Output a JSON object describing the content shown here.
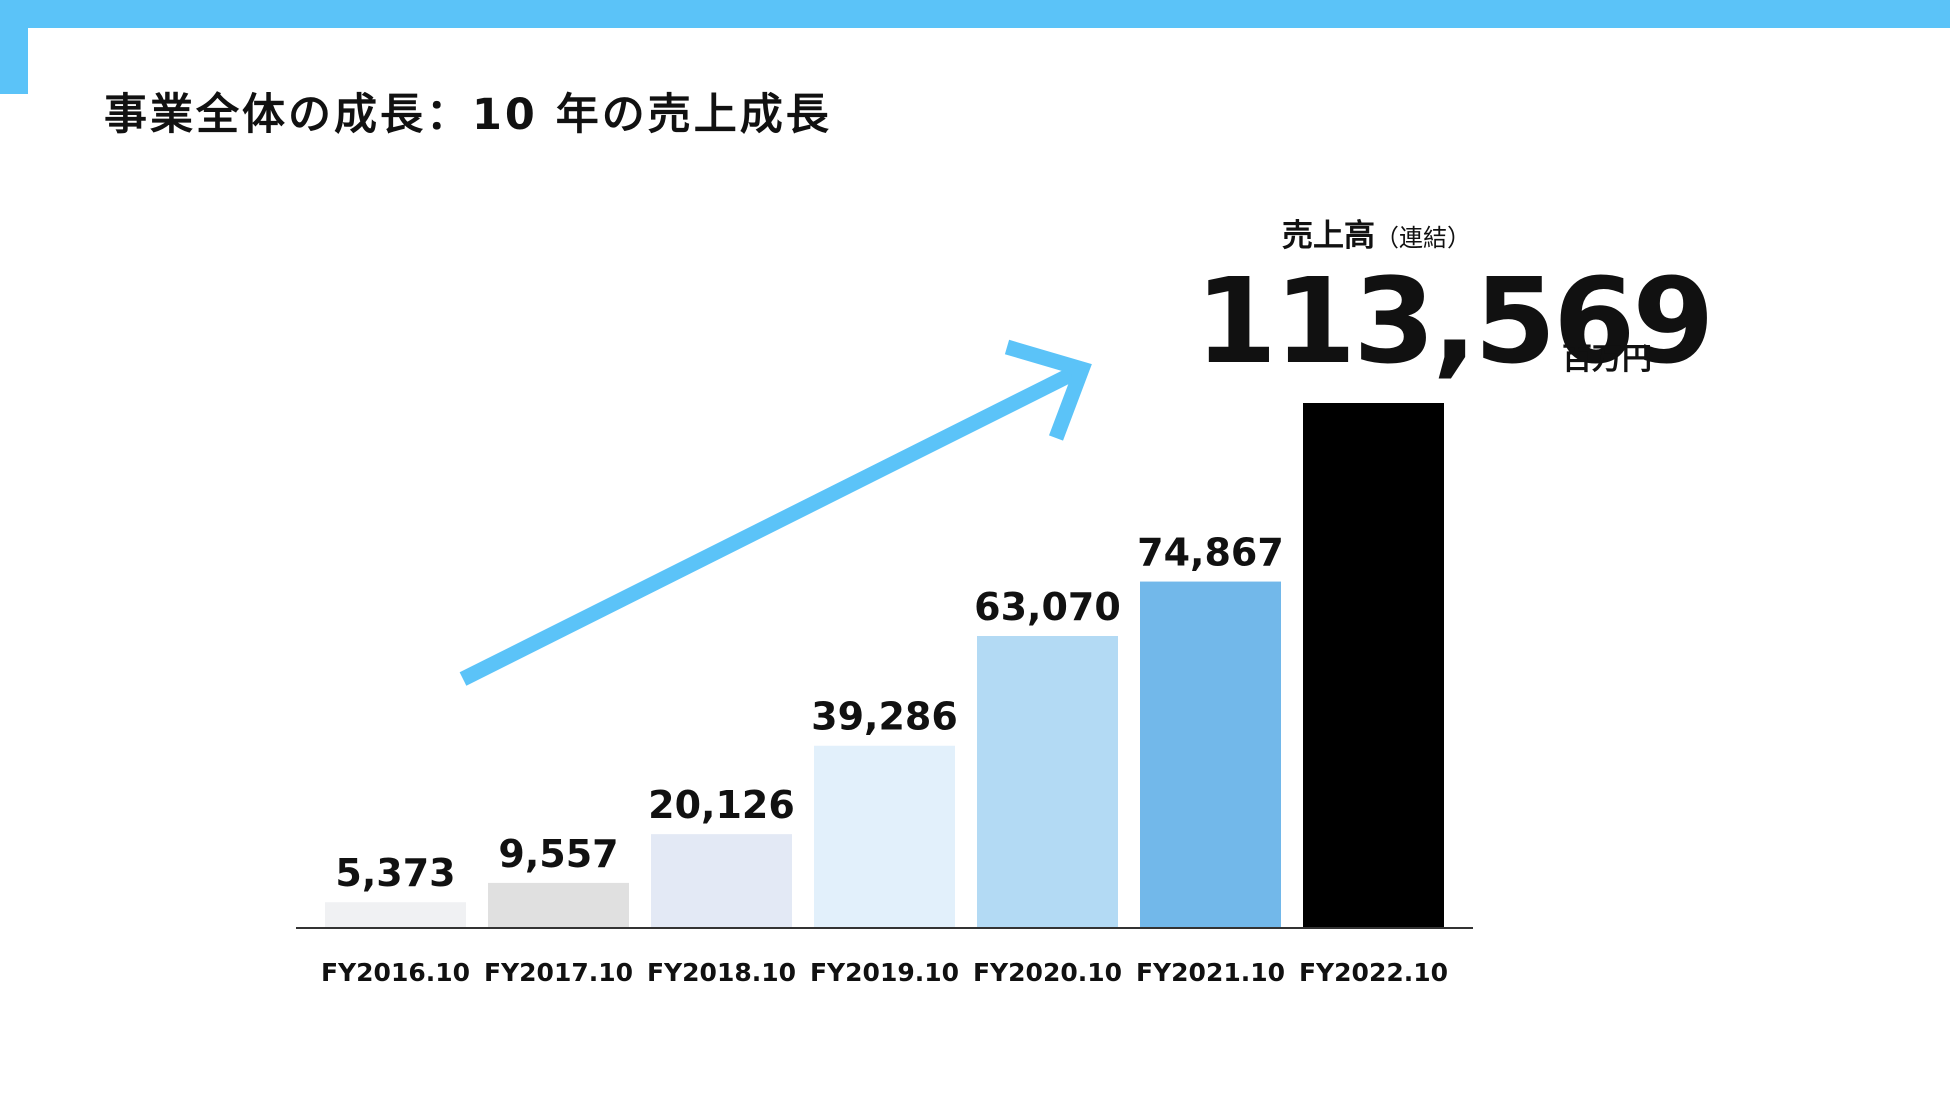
{
  "page": {
    "title": "事業全体の成長：10 年の売上成長"
  },
  "highlight": {
    "caption": "売上高",
    "caption_sub": "（連結）",
    "value": "113,569",
    "unit": "百万円"
  },
  "colors": {
    "accent": "#5bc3f8",
    "bars": [
      "#f0f1f3",
      "#e0e0e0",
      "#e3e9f5",
      "#e2f0fb",
      "#b3daf4",
      "#72b8ea",
      "#000000"
    ],
    "axis": "#333333"
  },
  "chart_data": {
    "type": "bar",
    "categories": [
      "FY2016.10",
      "FY2017.10",
      "FY2018.10",
      "FY2019.10",
      "FY2020.10",
      "FY2021.10",
      "FY2022.10"
    ],
    "values": [
      5373,
      9557,
      20126,
      39286,
      63070,
      74867,
      113569
    ],
    "value_labels": [
      "5,373",
      "9,557",
      "20,126",
      "39,286",
      "63,070",
      "74,867",
      ""
    ],
    "ylim": [
      0,
      113569
    ],
    "grid": false,
    "legend": "none",
    "annotations": [
      "growth-arrow"
    ]
  }
}
